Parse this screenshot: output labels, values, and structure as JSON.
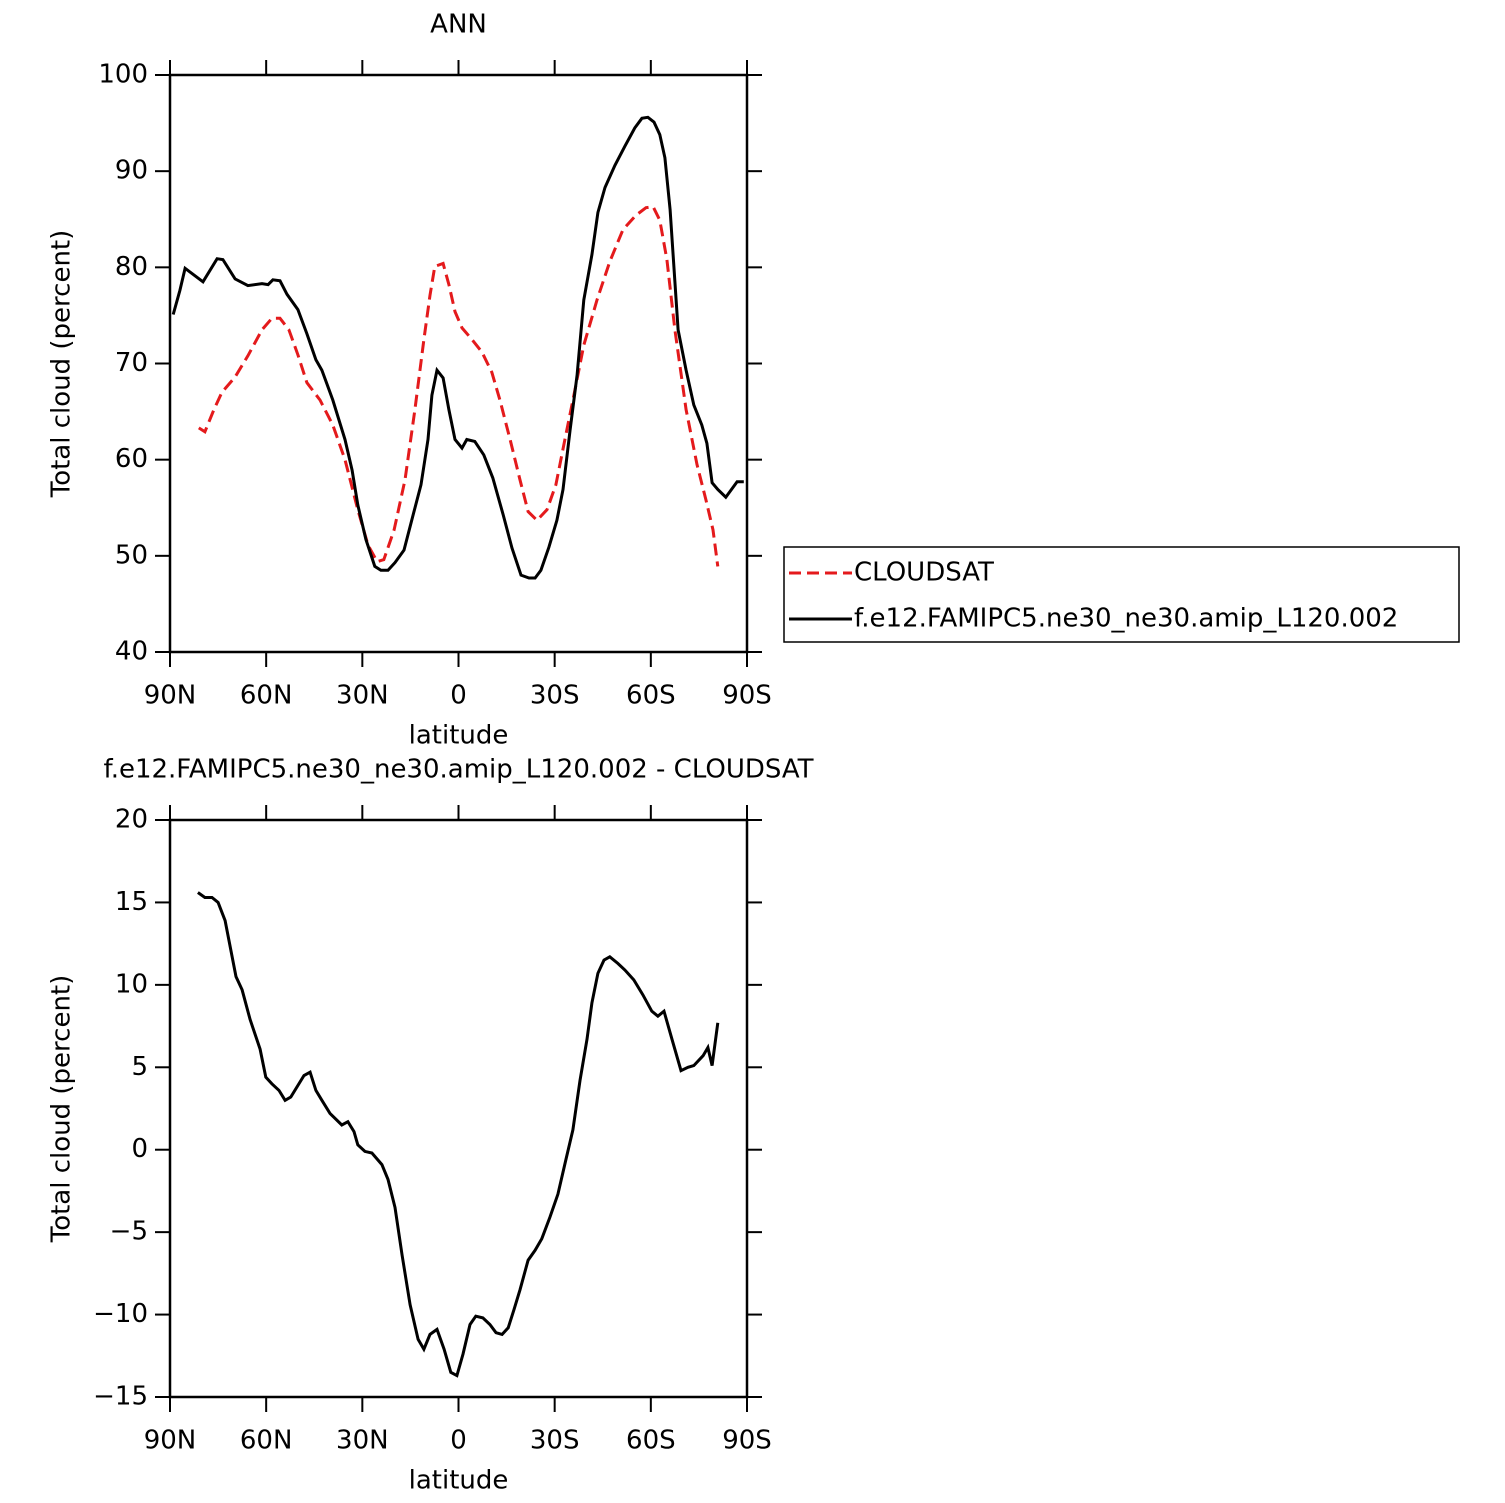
{
  "chart_data": [
    {
      "type": "line",
      "title": "ANN",
      "xlabel": "latitude",
      "ylabel": "Total cloud (percent)",
      "xlim": [
        90,
        -90
      ],
      "xticks": [
        {
          "value": 90,
          "label": "90N"
        },
        {
          "value": 60,
          "label": "60N"
        },
        {
          "value": 30,
          "label": "30N"
        },
        0,
        {
          "value": -30,
          "label": "30S"
        },
        {
          "value": -60,
          "label": "60S"
        },
        {
          "value": -90,
          "label": "90S"
        }
      ],
      "ylim": [
        40,
        100
      ],
      "yticks": [
        40,
        50,
        60,
        70,
        80,
        90,
        100
      ],
      "legend": "right",
      "series": [
        {
          "name": "CLOUDSAT",
          "color": "#e41a1c",
          "dash": true,
          "x": [
            81.0,
            79.1,
            76.3,
            73.8,
            69.7,
            65.7,
            61.3,
            58.2,
            55.7,
            52.9,
            50.1,
            47.3,
            43.2,
            39.2,
            35.4,
            31.4,
            28.2,
            25.4,
            23.3,
            20.1,
            16.7,
            13.6,
            10.8,
            8.9,
            7.4,
            4.8,
            3.0,
            1.1,
            -1.1,
            -4.2,
            -7.3,
            -10.4,
            -12.9,
            -16.1,
            -19.2,
            -21.7,
            -24.5,
            -27.6,
            -30.4,
            -33.2,
            -36.0,
            -39.1,
            -43.2,
            -47.2,
            -51.3,
            -55.3,
            -58.5,
            -60.7,
            -62.8,
            -65.0,
            -67.5,
            -71.0,
            -74.4,
            -77.2,
            -79.4,
            -80.9
          ],
          "values": [
            63.3,
            62.9,
            65.2,
            67.0,
            68.6,
            70.8,
            73.5,
            74.7,
            74.7,
            73.5,
            70.9,
            68.0,
            66.2,
            63.6,
            60.0,
            54.8,
            51.1,
            49.4,
            49.6,
            52.7,
            57.9,
            65.2,
            72.5,
            77.1,
            80.1,
            80.4,
            78.2,
            75.4,
            73.7,
            72.5,
            71.2,
            69.1,
            66.2,
            62.1,
            57.9,
            54.6,
            53.7,
            54.8,
            57.4,
            62.1,
            66.7,
            71.9,
            76.6,
            80.6,
            83.9,
            85.4,
            86.2,
            86.3,
            84.9,
            80.8,
            73.5,
            65.2,
            59.5,
            55.8,
            52.7,
            48.9
          ]
        },
        {
          "name": "f.e12.FAMIPC5.ne30_ne30.amip_L120.002",
          "color": "#000000",
          "dash": false,
          "x": [
            89.0,
            86.9,
            85.3,
            79.7,
            75.3,
            73.5,
            69.7,
            65.7,
            61.3,
            59.4,
            57.9,
            55.7,
            53.5,
            50.1,
            47.3,
            44.5,
            42.6,
            39.2,
            35.4,
            33.2,
            31.4,
            28.9,
            26.1,
            24.2,
            22.0,
            19.8,
            17.0,
            14.2,
            11.7,
            9.5,
            8.3,
            6.7,
            4.8,
            3.0,
            1.1,
            -1.1,
            -2.6,
            -5.1,
            -7.9,
            -10.7,
            -13.9,
            -16.7,
            -19.5,
            -22.0,
            -23.9,
            -25.7,
            -28.2,
            -30.7,
            -32.6,
            -34.8,
            -37.0,
            -39.1,
            -41.6,
            -43.5,
            -45.7,
            -48.8,
            -51.9,
            -55.0,
            -57.2,
            -59.1,
            -61.0,
            -62.8,
            -64.4,
            -66.0,
            -68.5,
            -71.0,
            -73.4,
            -75.9,
            -77.5,
            -79.1,
            -80.9,
            -83.4,
            -86.9,
            -89.0
          ],
          "values": [
            75.1,
            77.6,
            79.9,
            78.5,
            80.9,
            80.8,
            78.8,
            78.1,
            78.3,
            78.2,
            78.7,
            78.6,
            77.2,
            75.6,
            73.1,
            70.4,
            69.3,
            66.2,
            62.1,
            58.9,
            55.3,
            51.7,
            48.9,
            48.5,
            48.5,
            49.3,
            50.6,
            54.2,
            57.4,
            62.1,
            66.7,
            69.3,
            68.5,
            65.2,
            62.1,
            61.2,
            62.1,
            61.9,
            60.5,
            58.1,
            54.3,
            50.8,
            48.0,
            47.7,
            47.7,
            48.5,
            50.9,
            53.7,
            56.9,
            63.1,
            68.8,
            76.6,
            81.3,
            85.7,
            88.3,
            90.6,
            92.6,
            94.5,
            95.5,
            95.6,
            95.1,
            93.8,
            91.4,
            86.0,
            73.5,
            69.3,
            65.7,
            63.6,
            61.7,
            57.6,
            56.9,
            56.1,
            57.7,
            57.7
          ]
        }
      ]
    },
    {
      "type": "line",
      "title": "f.e12.FAMIPC5.ne30_ne30.amip_L120.002 - CLOUDSAT",
      "xlabel": "latitude",
      "ylabel": "Total cloud (percent)",
      "xlim": [
        90,
        -90
      ],
      "xticks": [
        {
          "value": 90,
          "label": "90N"
        },
        {
          "value": 60,
          "label": "60N"
        },
        {
          "value": 30,
          "label": "30N"
        },
        0,
        {
          "value": -30,
          "label": "30S"
        },
        {
          "value": -60,
          "label": "60S"
        },
        {
          "value": -90,
          "label": "90S"
        }
      ],
      "ylim": [
        -15,
        20
      ],
      "yticks": [
        {
          "value": -15,
          "label": "−15"
        },
        {
          "value": -10,
          "label": "−10"
        },
        {
          "value": -5,
          "label": "−5"
        },
        0,
        5,
        10,
        15,
        20
      ],
      "series": [
        {
          "color": "#000000",
          "dash": false,
          "x": [
            81.3,
            79.1,
            76.9,
            75.0,
            72.8,
            69.4,
            67.5,
            65.0,
            61.9,
            60.1,
            58.2,
            56.0,
            54.1,
            52.3,
            48.2,
            46.3,
            44.5,
            42.6,
            40.1,
            36.4,
            34.5,
            32.6,
            31.4,
            29.2,
            27.0,
            23.9,
            22.0,
            19.8,
            17.6,
            15.1,
            12.6,
            10.8,
            8.9,
            6.7,
            4.5,
            2.4,
            0.5,
            -1.4,
            -3.6,
            -5.4,
            -7.6,
            -9.8,
            -11.7,
            -13.6,
            -15.5,
            -17.3,
            -19.2,
            -21.7,
            -23.9,
            -26.0,
            -28.5,
            -31.0,
            -33.5,
            -35.7,
            -37.9,
            -40.1,
            -41.6,
            -43.5,
            -45.4,
            -47.2,
            -49.7,
            -51.9,
            -54.7,
            -57.5,
            -60.3,
            -62.2,
            -64.1,
            -66.6,
            -69.4,
            -71.6,
            -73.4,
            -76.3,
            -77.8,
            -79.1,
            -80.9
          ],
          "values": [
            15.6,
            15.3,
            15.3,
            15.0,
            13.9,
            10.5,
            9.7,
            7.9,
            6.1,
            4.4,
            4.0,
            3.6,
            3.0,
            3.2,
            4.5,
            4.7,
            3.6,
            3.0,
            2.2,
            1.5,
            1.7,
            1.1,
            0.3,
            -0.1,
            -0.2,
            -0.9,
            -1.8,
            -3.5,
            -6.4,
            -9.4,
            -11.5,
            -12.1,
            -11.2,
            -10.9,
            -12.1,
            -13.5,
            -13.7,
            -12.4,
            -10.6,
            -10.1,
            -10.2,
            -10.6,
            -11.1,
            -11.2,
            -10.8,
            -9.7,
            -8.5,
            -6.7,
            -6.1,
            -5.4,
            -4.1,
            -2.7,
            -0.6,
            1.2,
            4.2,
            6.7,
            8.9,
            10.7,
            11.5,
            11.7,
            11.3,
            10.9,
            10.3,
            9.4,
            8.4,
            8.1,
            8.4,
            6.7,
            4.8,
            5.0,
            5.1,
            5.7,
            6.2,
            5.1,
            7.7
          ]
        }
      ]
    }
  ]
}
